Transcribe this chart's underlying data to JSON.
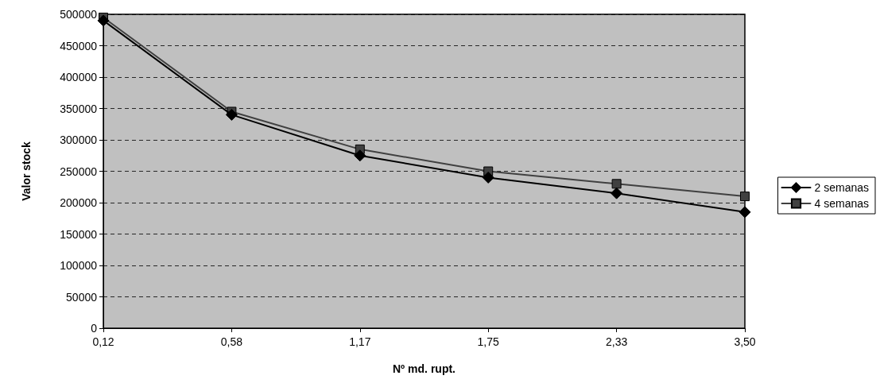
{
  "chart_data": {
    "type": "line",
    "xlabel": "Nº md. rupt.",
    "ylabel": "Valor stock",
    "categories": [
      "0,12",
      "0,58",
      "1,17",
      "1,75",
      "2,33",
      "3,50"
    ],
    "ylim": [
      0,
      500000
    ],
    "yticks": [
      0,
      50000,
      100000,
      150000,
      200000,
      250000,
      300000,
      350000,
      400000,
      450000,
      500000
    ],
    "grid": "y",
    "legend": "right",
    "series": [
      {
        "name": "2 semanas",
        "color": "#000000",
        "marker": "diamond",
        "values": [
          490000,
          340000,
          275000,
          240000,
          215000,
          185000
        ]
      },
      {
        "name": "4 semanas",
        "color": "#404040",
        "marker": "square",
        "values": [
          495000,
          345000,
          285000,
          250000,
          230000,
          210000
        ]
      }
    ]
  }
}
